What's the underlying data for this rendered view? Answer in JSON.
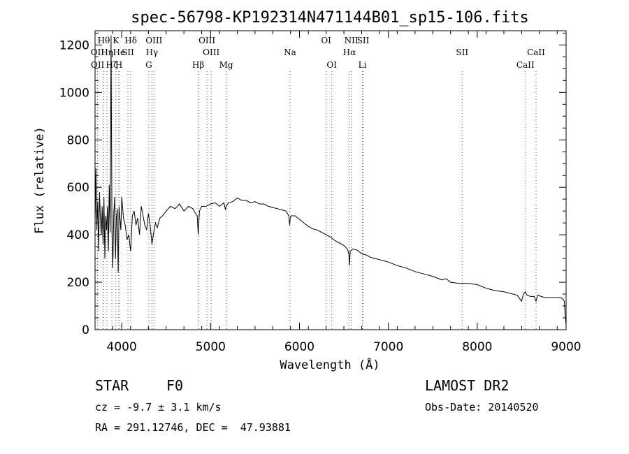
{
  "chart_data": {
    "type": "line",
    "title": "spec-56798-KP192314N471144B01_sp15-106.fits",
    "xlabel": "Wavelength (Å)",
    "ylabel": "Flux (relative)",
    "xlim": [
      3700,
      9000
    ],
    "ylim": [
      0,
      1260
    ],
    "xticks": [
      4000,
      5000,
      6000,
      7000,
      8000,
      9000
    ],
    "yticks": [
      0,
      200,
      400,
      600,
      800,
      1000,
      1200
    ],
    "grid": false,
    "legend": "none",
    "series": [
      {
        "values_x": [
          3700,
          3710,
          3720,
          3730,
          3740,
          3750,
          3760,
          3770,
          3780,
          3790,
          3800,
          3810,
          3820,
          3830,
          3840,
          3850,
          3860,
          3870,
          3880,
          3890,
          3900,
          3910,
          3920,
          3930,
          3940,
          3950,
          3960,
          3970,
          3980,
          3990,
          4000,
          4020,
          4040,
          4060,
          4080,
          4100,
          4120,
          4140,
          4160,
          4180,
          4200,
          4220,
          4240,
          4260,
          4280,
          4300,
          4320,
          4340,
          4360,
          4380,
          4400,
          4430,
          4460,
          4500,
          4550,
          4600,
          4650,
          4700,
          4750,
          4800,
          4830,
          4850,
          4861,
          4875,
          4900,
          4950,
          5000,
          5050,
          5100,
          5150,
          5167,
          5175,
          5200,
          5250,
          5300,
          5350,
          5400,
          5450,
          5500,
          5550,
          5600,
          5650,
          5700,
          5750,
          5800,
          5850,
          5880,
          5890,
          5896,
          5905,
          5950,
          6000,
          6050,
          6100,
          6150,
          6200,
          6250,
          6300,
          6350,
          6400,
          6450,
          6500,
          6540,
          6555,
          6563,
          6570,
          6600,
          6650,
          6700,
          6750,
          6800,
          6850,
          6900,
          6950,
          7000,
          7100,
          7200,
          7300,
          7400,
          7500,
          7600,
          7650,
          7700,
          7800,
          7900,
          8000,
          8100,
          8200,
          8300,
          8400,
          8450,
          8498,
          8520,
          8542,
          8560,
          8600,
          8640,
          8662,
          8680,
          8720,
          8760,
          8800,
          8850,
          8900,
          8940,
          8960,
          8980,
          8990,
          9000
        ],
        "values_y": [
          450,
          680,
          420,
          540,
          330,
          580,
          470,
          400,
          520,
          360,
          560,
          300,
          480,
          420,
          520,
          330,
          610,
          410,
          1240,
          420,
          260,
          480,
          560,
          300,
          470,
          510,
          240,
          520,
          470,
          420,
          560,
          470,
          440,
          380,
          400,
          330,
          480,
          500,
          440,
          470,
          400,
          520,
          480,
          440,
          420,
          490,
          440,
          360,
          410,
          450,
          430,
          470,
          480,
          500,
          520,
          510,
          530,
          500,
          520,
          510,
          490,
          480,
          400,
          500,
          520,
          520,
          530,
          535,
          520,
          535,
          505,
          520,
          535,
          540,
          555,
          545,
          545,
          535,
          540,
          530,
          530,
          520,
          515,
          510,
          505,
          500,
          480,
          440,
          470,
          480,
          480,
          465,
          450,
          435,
          425,
          420,
          410,
          400,
          390,
          375,
          365,
          355,
          340,
          320,
          270,
          330,
          340,
          335,
          320,
          315,
          305,
          300,
          295,
          290,
          285,
          270,
          260,
          245,
          235,
          225,
          210,
          215,
          200,
          195,
          195,
          190,
          175,
          165,
          160,
          150,
          145,
          120,
          150,
          160,
          145,
          140,
          140,
          120,
          145,
          140,
          135,
          135,
          135,
          135,
          135,
          130,
          120,
          60,
          20
        ]
      }
    ],
    "spectral_lines": [
      {
        "label": "OII",
        "wavelength": 3727,
        "row": 2
      },
      {
        "label": "OII",
        "wavelength": 3729,
        "row": 3
      },
      {
        "label": "Hθ",
        "wavelength": 3798,
        "row": 1
      },
      {
        "label": "Hη",
        "wavelength": 3835,
        "row": 2
      },
      {
        "label": "Hζ",
        "wavelength": 3889,
        "row": 3
      },
      {
        "label": "He",
        "wavelength": 3970,
        "row": 2
      },
      {
        "label": "K",
        "wavelength": 3934,
        "row": 1
      },
      {
        "label": "SII",
        "wavelength": 4070,
        "row": 2
      },
      {
        "label": "H",
        "wavelength": 3968,
        "row": 3
      },
      {
        "label": "Hδ",
        "wavelength": 4102,
        "row": 1
      },
      {
        "label": "OIII",
        "wavelength": 4363,
        "row": 1
      },
      {
        "label": "Hγ",
        "wavelength": 4340,
        "row": 2
      },
      {
        "label": "G",
        "wavelength": 4305,
        "row": 3
      },
      {
        "label": "Hβ",
        "wavelength": 4861,
        "row": 3
      },
      {
        "label": "OIII",
        "wavelength": 4959,
        "row": 1
      },
      {
        "label": "OIII",
        "wavelength": 5007,
        "row": 2
      },
      {
        "label": "Mg",
        "wavelength": 5175,
        "row": 3
      },
      {
        "label": "Na",
        "wavelength": 5894,
        "row": 2
      },
      {
        "label": "OI",
        "wavelength": 6300,
        "row": 1
      },
      {
        "label": "OI",
        "wavelength": 6363,
        "row": 3
      },
      {
        "label": "NII",
        "wavelength": 6583,
        "row": 1
      },
      {
        "label": "Hα",
        "wavelength": 6563,
        "row": 2
      },
      {
        "label": "SII",
        "wavelength": 6716,
        "row": 1
      },
      {
        "label": "Li",
        "wavelength": 6708,
        "row": 3
      },
      {
        "label": "SII",
        "wavelength": 7830,
        "row": 2
      },
      {
        "label": "CaII",
        "wavelength": 8662,
        "row": 2
      },
      {
        "label": "CaII",
        "wavelength": 8542,
        "row": 3
      }
    ]
  },
  "footer": {
    "class_type": "STAR",
    "subclass": "F0",
    "survey": "LAMOST DR2",
    "redshift": "cz = -9.7 ± 3.1 km/s",
    "obs_date": "Obs-Date: 20140520",
    "coords": "RA = 291.12746, DEC =  47.93881"
  }
}
